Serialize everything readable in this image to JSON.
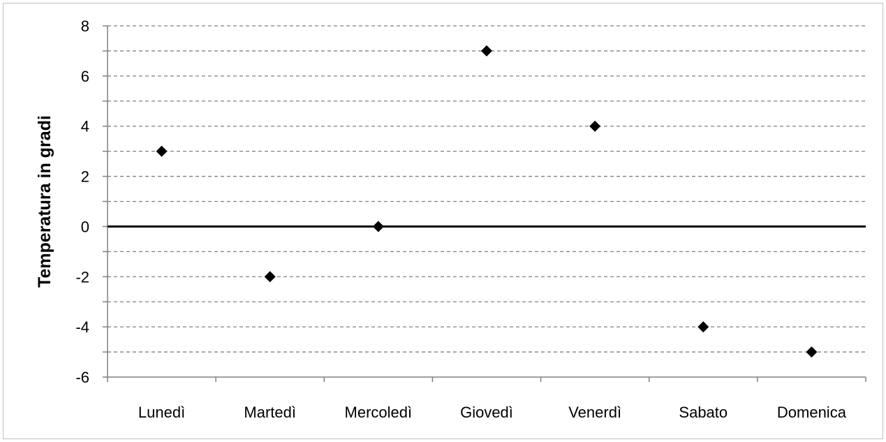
{
  "chart_data": {
    "type": "scatter",
    "title": "",
    "xlabel": "",
    "ylabel": "Temperatura in gradi",
    "categories": [
      "Lunedì",
      "Martedì",
      "Mercoledì",
      "Giovedì",
      "Venerdì",
      "Sabato",
      "Domenica"
    ],
    "series": [
      {
        "values": [
          3,
          -2,
          0,
          7,
          4,
          -4,
          -5
        ]
      }
    ],
    "ylim": [
      -6,
      8
    ],
    "yticks": [
      8,
      6,
      4,
      2,
      0,
      -2,
      -4,
      -6
    ],
    "minor_grid_step": 1,
    "grid": "dashed horizontal",
    "legend": "none",
    "marker": "diamond",
    "colors": {
      "marker": "#000000",
      "zero_line": "#000000",
      "grid": "#808080",
      "axis": "#808080"
    }
  }
}
